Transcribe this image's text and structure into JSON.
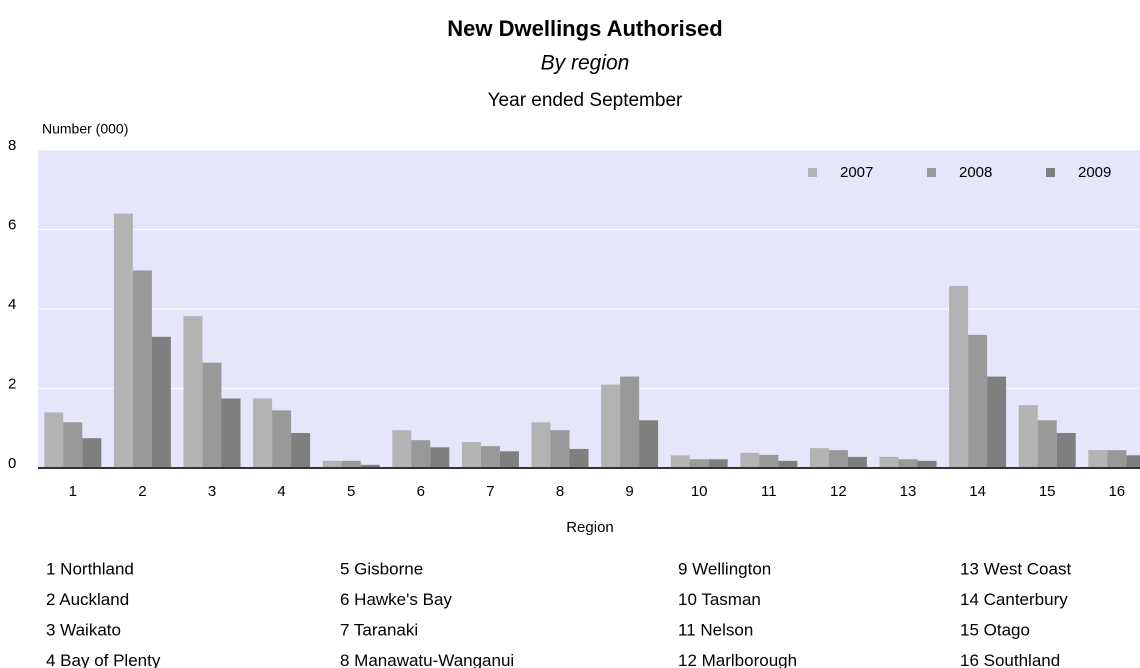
{
  "chart_data": {
    "type": "bar",
    "title": "New Dwellings Authorised",
    "subtitle": "By region",
    "subtitle2": "Year ended September",
    "y_label": "Number (000)",
    "x_label": "Region",
    "categories": [
      "1",
      "2",
      "3",
      "4",
      "5",
      "6",
      "7",
      "8",
      "9",
      "10",
      "11",
      "12",
      "13",
      "14",
      "15",
      "16"
    ],
    "series": [
      {
        "name": "2007",
        "color": "#b3b3b3",
        "values": [
          1.4,
          6.4,
          3.82,
          1.75,
          0.18,
          0.95,
          0.65,
          1.15,
          2.1,
          0.32,
          0.38,
          0.5,
          0.28,
          4.58,
          1.58,
          0.45
        ]
      },
      {
        "name": "2008",
        "color": "#999999",
        "values": [
          1.15,
          4.97,
          2.65,
          1.45,
          0.18,
          0.7,
          0.55,
          0.95,
          2.3,
          0.22,
          0.33,
          0.45,
          0.22,
          3.35,
          1.2,
          0.45
        ]
      },
      {
        "name": "2009",
        "color": "#7f7f7f",
        "values": [
          0.75,
          3.3,
          1.75,
          0.88,
          0.08,
          0.52,
          0.42,
          0.48,
          1.2,
          0.22,
          0.18,
          0.28,
          0.18,
          2.3,
          0.88,
          0.32
        ]
      }
    ],
    "ylim": [
      0,
      8
    ],
    "yticks": [
      0,
      2,
      4,
      6,
      8
    ],
    "grid": true,
    "legend": "top-right",
    "key": [
      "1 Northland",
      "2 Auckland",
      "3 Waikato",
      "4 Bay of Plenty",
      "5 Gisborne",
      "6 Hawke's Bay",
      "7 Taranaki",
      "8 Manawatu-Wanganui",
      "9 Wellington",
      "10 Tasman",
      "11 Nelson",
      "12 Marlborough",
      "13 West Coast",
      "14 Canterbury",
      "15 Otago",
      "16 Southland"
    ]
  }
}
